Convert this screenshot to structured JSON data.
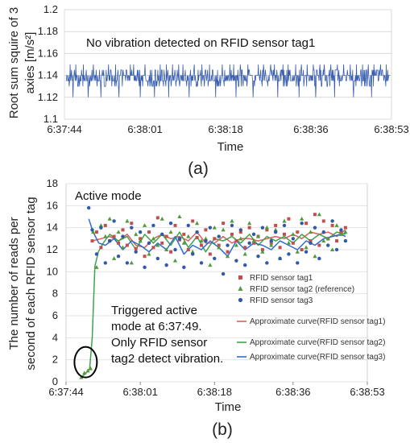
{
  "chart_data": [
    {
      "type": "line",
      "panel_label": "(a)",
      "annotation": "No vibration detected on RFID sensor tag1",
      "xlabel": "Time",
      "ylabel_lines": [
        "Root sum squire of 3",
        "axies [m/s²]"
      ],
      "ylim": [
        1.1,
        1.2
      ],
      "yticks": [
        "1.1",
        "1.12",
        "1.14",
        "1.16",
        "1.18",
        "1.2"
      ],
      "xlim": [
        0,
        69
      ],
      "xticks": [
        {
          "t": 0,
          "label": "6:37:44"
        },
        {
          "t": 17,
          "label": "6:38:01"
        },
        {
          "t": 34,
          "label": "6:38:18"
        },
        {
          "t": 52,
          "label": "6:38:36"
        },
        {
          "t": 69,
          "label": "6:38:53"
        }
      ],
      "baseline": 1.14,
      "series": [
        {
          "color": "#3a5fb0",
          "description_points": "oscillates 1.13-1.145 with spikes to 1.15 and dips to 1.12",
          "x_start": 0.3,
          "x_end": 68.7,
          "spikes_high": [
            1.2,
            2.4,
            4.0,
            6.1,
            9.3,
            10.8,
            13.9,
            14.6,
            17.0,
            20.2,
            21.5,
            22.8,
            24.1,
            25.0,
            27.4,
            29.0,
            30.6,
            33.3,
            34.9,
            35.7,
            37.1,
            38.7,
            40.9,
            42.0,
            43.5,
            44.3,
            46.1,
            47.2,
            48.8,
            50.0,
            51.2,
            52.5,
            53.9,
            54.8,
            56.2,
            57.6,
            58.9,
            60.3,
            61.6,
            62.9,
            64.1,
            65.3,
            66.7,
            67.9
          ],
          "spikes_low": [
            1.8,
            5.0,
            7.7,
            11.5,
            16.0,
            19.0,
            22.0,
            26.3,
            31.9,
            36.2,
            39.8,
            45.0,
            49.5,
            53.0,
            57.0,
            61.0,
            64.8
          ]
        }
      ]
    },
    {
      "type": "scatter+line",
      "panel_label": "(b)",
      "title": "Active mode",
      "annotation_lines": [
        "Triggered active",
        "mode at 6:37:49.",
        "Only RFID sensor",
        "tag2 detect vibration."
      ],
      "xlabel": "Time",
      "ylabel_lines": [
        "The number of reads per",
        "second of each RFID sensor tag"
      ],
      "ylim": [
        0,
        18
      ],
      "yticks": [
        "0",
        "2",
        "4",
        "6",
        "8",
        "10",
        "12",
        "14",
        "16",
        "18"
      ],
      "xlim": [
        0,
        69
      ],
      "xticks": [
        {
          "t": 0,
          "label": "6:37:44"
        },
        {
          "t": 17,
          "label": "6:38:01"
        },
        {
          "t": 34,
          "label": "6:38:18"
        },
        {
          "t": 52,
          "label": "6:38:36"
        },
        {
          "t": 69,
          "label": "6:38:53"
        }
      ],
      "legend": [
        {
          "name": "RFID sensor tag1",
          "marker": "square",
          "color": "#c0504d"
        },
        {
          "name": "RFID sensor tag2 (reference)",
          "marker": "triangle",
          "color": "#4e9a3c"
        },
        {
          "name": "RFID sensor tag3",
          "marker": "circle",
          "color": "#2f5aa8"
        },
        {
          "name": "Approximate curve(RFID sensor tag1)",
          "marker": "line",
          "color": "#e05b5b"
        },
        {
          "name": "Approximate curve(RFID sensor tag2)",
          "marker": "line",
          "color": "#3fa34d"
        },
        {
          "name": "Approximate curve(RFID sensor tag3)",
          "marker": "line",
          "color": "#2f6ad0"
        }
      ],
      "series": [
        {
          "name": "RFID sensor tag1",
          "x": [
            6,
            7,
            8,
            9,
            10,
            11,
            12,
            13,
            14,
            15,
            16,
            17,
            18,
            19,
            20,
            21,
            22,
            23,
            24,
            25,
            26,
            27,
            28,
            29,
            30,
            31,
            32,
            33,
            34,
            35,
            36,
            37,
            38,
            39,
            40,
            41,
            42,
            43,
            44,
            45,
            46,
            47,
            48,
            49,
            50,
            51,
            52,
            53,
            54,
            55,
            56,
            57,
            58,
            59,
            60,
            61,
            62,
            63,
            64
          ],
          "y": [
            12.8,
            13.6,
            12.2,
            14.2,
            12.8,
            13.2,
            12.6,
            13.8,
            12.4,
            14.4,
            12.1,
            13.0,
            11.4,
            13.6,
            12.2,
            14.9,
            12.6,
            13.2,
            11.8,
            14.2,
            12.9,
            13.4,
            12.0,
            14.6,
            13.1,
            12.4,
            13.8,
            11.6,
            13.0,
            12.4,
            14.4,
            11.8,
            13.4,
            12.8,
            13.6,
            12.2,
            14.0,
            12.6,
            13.2,
            12.0,
            13.8,
            12.6,
            14.2,
            12.2,
            13.4,
            14.8,
            12.6,
            13.6,
            12.0,
            14.4,
            12.8,
            15.2,
            12.4,
            14.6,
            13.0,
            14.2,
            12.8,
            13.6,
            14.0
          ]
        },
        {
          "name": "RFID sensor tag2 (reference)",
          "x": [
            3.5,
            4.2,
            5.0,
            5.6,
            6.2,
            7,
            8,
            9,
            10,
            11,
            12,
            13,
            14,
            15,
            16,
            17,
            18,
            19,
            20,
            21,
            22,
            23,
            24,
            25,
            26,
            27,
            28,
            29,
            30,
            31,
            32,
            33,
            34,
            35,
            36,
            37,
            38,
            39,
            40,
            41,
            42,
            43,
            44,
            45,
            46,
            47,
            48,
            49,
            50,
            51,
            52,
            53,
            54,
            55,
            56,
            57,
            58,
            59,
            60,
            61,
            62,
            63,
            64
          ],
          "y": [
            0.4,
            0.8,
            1.0,
            1.2,
            13.6,
            10.4,
            14.2,
            13.2,
            14.8,
            11.2,
            13.6,
            12.2,
            14.6,
            10.8,
            13.4,
            12.8,
            14.2,
            11.6,
            13.0,
            12.4,
            14.8,
            12.0,
            13.6,
            11.0,
            15.0,
            12.6,
            13.2,
            11.8,
            14.4,
            12.8,
            13.0,
            10.6,
            14.0,
            12.2,
            13.8,
            11.4,
            14.6,
            12.4,
            13.0,
            11.6,
            14.4,
            12.8,
            13.2,
            11.8,
            14.0,
            12.4,
            13.8,
            11.2,
            14.6,
            12.6,
            13.4,
            11.8,
            14.8,
            12.2,
            13.6,
            11.4,
            15.2,
            12.8,
            13.0,
            12.0,
            14.2,
            13.4,
            13.6
          ]
        },
        {
          "name": "RFID sensor tag3",
          "x": [
            5.2,
            6,
            7,
            8,
            9,
            10,
            11,
            12,
            13,
            14,
            15,
            16,
            17,
            18,
            19,
            20,
            21,
            22,
            23,
            24,
            25,
            26,
            27,
            28,
            29,
            30,
            31,
            32,
            33,
            34,
            35,
            36,
            37,
            38,
            39,
            40,
            41,
            42,
            43,
            44,
            45,
            46,
            47,
            48,
            49,
            50,
            51,
            52,
            53,
            54,
            55,
            56,
            57,
            58,
            59,
            60,
            61,
            62,
            63,
            64
          ],
          "y": [
            15.8,
            13.8,
            11.6,
            14.0,
            10.8,
            12.8,
            14.6,
            11.4,
            13.2,
            10.8,
            14.0,
            11.8,
            13.6,
            10.4,
            12.6,
            14.2,
            11.2,
            13.4,
            10.6,
            14.4,
            12.0,
            13.0,
            10.4,
            14.2,
            11.6,
            13.6,
            10.8,
            12.8,
            14.0,
            11.2,
            13.2,
            9.8,
            12.4,
            14.2,
            11.0,
            13.8,
            10.6,
            12.6,
            13.4,
            11.4,
            14.0,
            10.8,
            12.8,
            13.6,
            11.2,
            14.2,
            11.6,
            13.0,
            10.8,
            14.4,
            11.8,
            12.6,
            14.0,
            11.2,
            13.6,
            12.4,
            14.6,
            12.0,
            13.8,
            12.8
          ]
        }
      ],
      "curves": [
        {
          "name": "Approximate curve(RFID sensor tag1)",
          "x": [
            6,
            8,
            10,
            12,
            14,
            16,
            18,
            20,
            22,
            24,
            26,
            28,
            30,
            32,
            34,
            36,
            38,
            40,
            42,
            44,
            46,
            48,
            50,
            52,
            54,
            56,
            58,
            60,
            62,
            64
          ],
          "y": [
            12.8,
            13.0,
            13.2,
            12.8,
            13.4,
            12.4,
            12.2,
            13.0,
            13.4,
            13.0,
            13.2,
            12.8,
            13.6,
            12.6,
            12.6,
            13.2,
            12.6,
            13.0,
            13.0,
            12.8,
            13.0,
            13.2,
            13.0,
            13.4,
            13.0,
            13.6,
            13.4,
            13.6,
            13.2,
            13.8
          ]
        },
        {
          "name": "Approximate curve(RFID sensor tag2)",
          "x": [
            3.5,
            4.6,
            5.4,
            6.0,
            6.6,
            7.4,
            8.5,
            10,
            12,
            14,
            16,
            18,
            20,
            22,
            24,
            26,
            28,
            30,
            32,
            34,
            36,
            38,
            40,
            42,
            44,
            46,
            48,
            50,
            52,
            54,
            56,
            58,
            60,
            62,
            64
          ],
          "y": [
            0.4,
            0.8,
            1.2,
            4.0,
            10.5,
            11.8,
            12.6,
            13.4,
            12.8,
            13.2,
            12.0,
            13.4,
            12.6,
            13.4,
            12.4,
            13.6,
            12.2,
            13.2,
            11.8,
            13.0,
            12.8,
            13.2,
            12.6,
            13.4,
            12.4,
            13.2,
            12.8,
            13.2,
            12.6,
            13.4,
            12.8,
            13.4,
            13.0,
            13.6,
            13.4
          ]
        },
        {
          "name": "Approximate curve(RFID sensor tag3)",
          "x": [
            5.2,
            6.2,
            7.5,
            9,
            11,
            13,
            15,
            17,
            19,
            21,
            23,
            25,
            27,
            29,
            31,
            33,
            35,
            37,
            39,
            41,
            43,
            45,
            47,
            49,
            51,
            53,
            55,
            57,
            59,
            61,
            63,
            64
          ],
          "y": [
            14.8,
            13.6,
            12.6,
            12.4,
            13.0,
            12.0,
            12.8,
            12.4,
            11.8,
            12.6,
            12.0,
            13.2,
            11.6,
            12.4,
            12.0,
            12.8,
            12.2,
            11.4,
            12.8,
            12.0,
            12.6,
            12.4,
            12.0,
            12.8,
            12.4,
            12.0,
            12.8,
            12.4,
            13.0,
            13.2,
            13.4,
            13.2
          ]
        }
      ],
      "circle_highlight": {
        "x": 4.5,
        "y": 1.2
      }
    }
  ]
}
